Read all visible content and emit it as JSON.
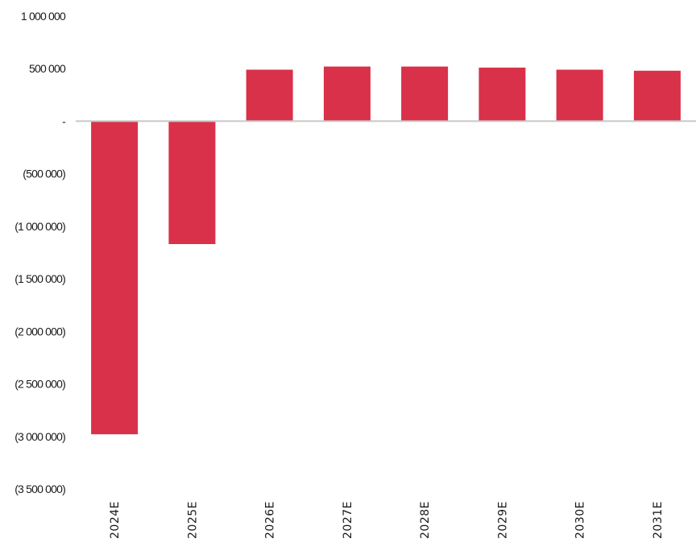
{
  "chart_data": {
    "type": "bar",
    "title": "",
    "xlabel": "",
    "ylabel": "",
    "categories": [
      "2024E",
      "2025E",
      "2026E",
      "2027E",
      "2028E",
      "2029E",
      "2030E",
      "2031E"
    ],
    "values": [
      -2980000,
      -1170000,
      490000,
      520000,
      520000,
      510000,
      490000,
      480000
    ],
    "ylim": [
      -3500000,
      1000000
    ],
    "yticks": [
      1000000,
      500000,
      0,
      -500000,
      -1000000,
      -1500000,
      -2000000,
      -2500000,
      -3000000,
      -3500000
    ],
    "ytick_labels": [
      "1 000 000",
      "500 000",
      "-",
      "(500 000)",
      "(1 000 000)",
      "(1 500 000)",
      "(2 000 000)",
      "(2 500 000)",
      "(3 000 000)",
      "(3 500 000)"
    ],
    "grid": false,
    "legend": "none",
    "colors": {
      "bar": "#d9314a",
      "zero_line": "#c8c8c8"
    }
  }
}
